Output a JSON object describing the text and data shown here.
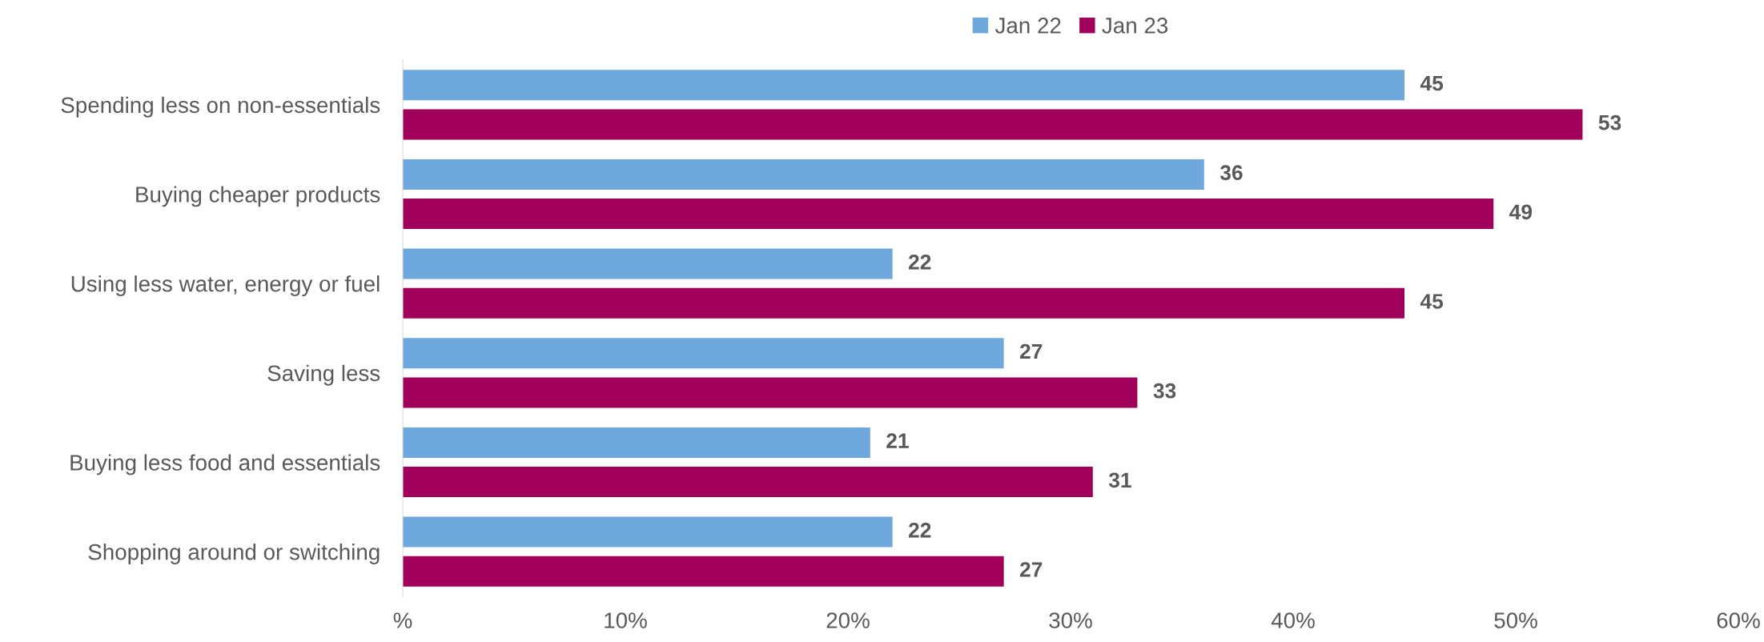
{
  "chart_data": {
    "type": "bar",
    "orientation": "horizontal",
    "categories": [
      "Spending less on non-essentials",
      "Buying cheaper products",
      "Using less water, energy or fuel",
      "Saving less",
      "Buying less food and essentials",
      "Shopping around or switching"
    ],
    "series": [
      {
        "name": "Jan 22",
        "color": "#6fa8dc",
        "values": [
          45,
          36,
          22,
          27,
          21,
          22
        ]
      },
      {
        "name": "Jan 23",
        "color": "#a0005a",
        "values": [
          53,
          49,
          45,
          33,
          31,
          27
        ]
      }
    ],
    "xlim": [
      0,
      60
    ],
    "xticks": [
      {
        "value": 0,
        "label": "%"
      },
      {
        "value": 10,
        "label": "10%"
      },
      {
        "value": 20,
        "label": "20%"
      },
      {
        "value": 30,
        "label": "30%"
      },
      {
        "value": 40,
        "label": "40%"
      },
      {
        "value": 50,
        "label": "50%"
      },
      {
        "value": 60,
        "label": "60%"
      }
    ],
    "data_labels": true,
    "grid": false,
    "legend": "top"
  }
}
